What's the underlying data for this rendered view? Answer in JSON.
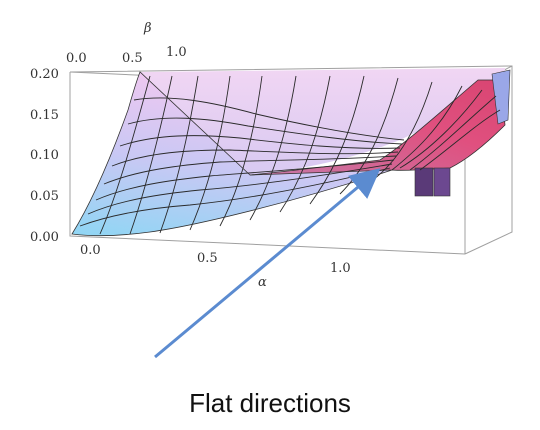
{
  "plot": {
    "beta_label": "β",
    "alpha_label": "α",
    "beta_ticks": [
      "0.0",
      "0.5",
      "1.0"
    ],
    "alpha_ticks": [
      "0.0",
      "0.5",
      "1.0"
    ],
    "z_ticks": [
      "0.20",
      "0.15",
      "0.10",
      "0.05",
      "0.00"
    ]
  },
  "annotation": {
    "caption": "Flat directions",
    "arrow_color": "#5b8bd0"
  },
  "colors": {
    "surface_low": "#7fd0f0",
    "surface_mid": "#d9b8f0",
    "surface_high": "#e0477a",
    "box_line": "#a0a0a0"
  }
}
